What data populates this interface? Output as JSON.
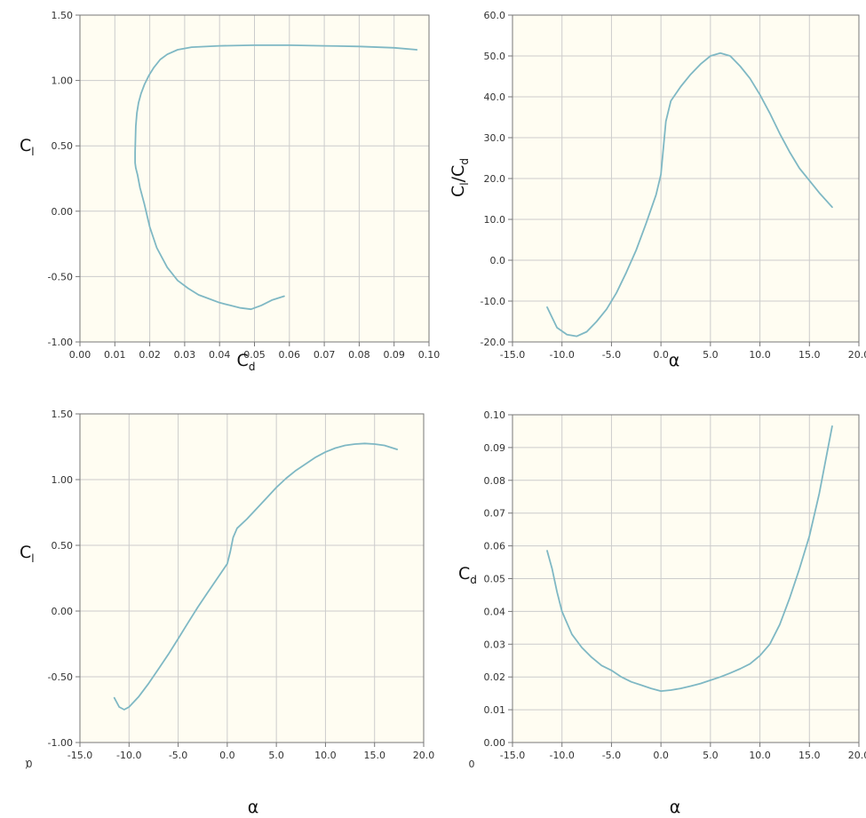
{
  "colors": {
    "plot_background": "#fffdf2",
    "grid": "#cccccc",
    "axis": "#777777",
    "series_line": "#7fb8c4"
  },
  "chart_data": [
    {
      "type": "line",
      "x_axis": {
        "range": [
          0.0,
          0.1
        ],
        "ticks": [
          "0.00",
          "0.01",
          "0.02",
          "0.03",
          "0.04",
          "0.05",
          "0.06",
          "0.07",
          "0.08",
          "0.09",
          "0.10"
        ]
      },
      "y_axis": {
        "range": [
          -1.0,
          1.5
        ],
        "ticks": [
          "-1.00",
          "-0.50",
          "0.00",
          "0.50",
          "1.00",
          "1.50"
        ]
      },
      "xlabel": {
        "main": "C",
        "sub": "d"
      },
      "ylabel": {
        "main": "C",
        "sub": "l"
      },
      "grid": true,
      "series": [
        {
          "x": [
            0.0585,
            0.055,
            0.052,
            0.049,
            0.046,
            0.043,
            0.04,
            0.037,
            0.034,
            0.031,
            0.028,
            0.025,
            0.022,
            0.02,
            0.0185,
            0.0172,
            0.0165,
            0.016,
            0.0158,
            0.0158,
            0.0159,
            0.016,
            0.0163,
            0.0168,
            0.0175,
            0.0185,
            0.0198,
            0.0212,
            0.023,
            0.025,
            0.028,
            0.032,
            0.04,
            0.05,
            0.06,
            0.07,
            0.08,
            0.09,
            0.0965
          ],
          "y": [
            -0.65,
            -0.68,
            -0.72,
            -0.75,
            -0.74,
            -0.72,
            -0.7,
            -0.67,
            -0.64,
            -0.59,
            -0.53,
            -0.43,
            -0.28,
            -0.12,
            0.05,
            0.18,
            0.28,
            0.33,
            0.37,
            0.45,
            0.55,
            0.65,
            0.75,
            0.83,
            0.9,
            0.97,
            1.04,
            1.1,
            1.16,
            1.2,
            1.235,
            1.255,
            1.265,
            1.27,
            1.27,
            1.265,
            1.26,
            1.25,
            1.235
          ]
        }
      ]
    },
    {
      "type": "line",
      "x_axis": {
        "range": [
          -15.0,
          20.0
        ],
        "ticks": [
          "-15.0",
          "-10.0",
          "-5.0",
          "0.0",
          "5.0",
          "10.0",
          "15.0",
          "20.0"
        ]
      },
      "y_axis": {
        "range": [
          -20.0,
          60.0
        ],
        "ticks": [
          "-20.0",
          "-10.0",
          "0.0",
          "10.0",
          "20.0",
          "30.0",
          "40.0",
          "50.0",
          "60.0"
        ]
      },
      "xlabel": {
        "main": "α",
        "sub": ""
      },
      "ylabel": {
        "main": "C",
        "sub": "l",
        "tail": "/C",
        "tail_sub": "d"
      },
      "grid": true,
      "series": [
        {
          "x": [
            -11.5,
            -10.5,
            -9.5,
            -8.5,
            -7.5,
            -6.5,
            -5.5,
            -4.5,
            -3.5,
            -2.5,
            -1.5,
            -0.5,
            0.0,
            0.5,
            1.0,
            2.0,
            3.0,
            4.0,
            5.0,
            6.0,
            7.0,
            8.0,
            9.0,
            10.0,
            11.0,
            12.0,
            13.0,
            14.0,
            15.0,
            16.0,
            17.3
          ],
          "y": [
            -11.5,
            -16.5,
            -18.2,
            -18.6,
            -17.5,
            -15.0,
            -12.0,
            -8.0,
            -3.0,
            2.5,
            9.0,
            16.0,
            21.0,
            34.0,
            39.0,
            42.5,
            45.5,
            48.0,
            50.0,
            50.7,
            50.0,
            47.5,
            44.5,
            40.5,
            36.0,
            31.0,
            26.5,
            22.5,
            19.5,
            16.5,
            13.0
          ]
        }
      ]
    },
    {
      "type": "line",
      "x_axis": {
        "range": [
          -15.0,
          20.0
        ],
        "ticks": [
          "-15.0",
          "-10.0",
          "-5.0",
          "0.0",
          "5.0",
          "10.0",
          "15.0",
          "20.0"
        ]
      },
      "y_axis": {
        "range": [
          -1.0,
          1.5
        ],
        "ticks": [
          "-1.00",
          "-0.50",
          "0.00",
          "0.50",
          "1.00",
          "1.50"
        ]
      },
      "xlabel": {
        "main": "α",
        "sub": ""
      },
      "ylabel": {
        "main": "C",
        "sub": "l"
      },
      "grid": true,
      "series": [
        {
          "x": [
            -11.5,
            -11.0,
            -10.5,
            -10.0,
            -9.0,
            -8.0,
            -7.0,
            -6.0,
            -5.0,
            -4.0,
            -3.0,
            -2.0,
            -1.0,
            0.0,
            0.3,
            0.6,
            1.0,
            2.0,
            3.0,
            4.0,
            5.0,
            6.0,
            7.0,
            8.0,
            9.0,
            10.0,
            11.0,
            12.0,
            13.0,
            14.0,
            15.0,
            16.0,
            17.3
          ],
          "y": [
            -0.66,
            -0.73,
            -0.75,
            -0.73,
            -0.65,
            -0.55,
            -0.44,
            -0.33,
            -0.21,
            -0.09,
            0.03,
            0.14,
            0.25,
            0.36,
            0.45,
            0.56,
            0.63,
            0.7,
            0.78,
            0.86,
            0.94,
            1.01,
            1.07,
            1.12,
            1.17,
            1.21,
            1.24,
            1.26,
            1.27,
            1.275,
            1.27,
            1.26,
            1.23
          ]
        }
      ]
    },
    {
      "type": "line",
      "x_axis": {
        "range": [
          -15.0,
          20.0
        ],
        "ticks": [
          "-15.0",
          "-10.0",
          "-5.0",
          "0.0",
          "5.0",
          "10.0",
          "15.0",
          "20.0"
        ]
      },
      "y_axis": {
        "range": [
          0.0,
          0.1
        ],
        "ticks": [
          "0.00",
          "0.01",
          "0.02",
          "0.03",
          "0.04",
          "0.05",
          "0.06",
          "0.07",
          "0.08",
          "0.09",
          "0.10"
        ]
      },
      "xlabel": {
        "main": "α",
        "sub": ""
      },
      "ylabel": {
        "main": "C",
        "sub": "d"
      },
      "grid": true,
      "series": [
        {
          "x": [
            -11.5,
            -11.0,
            -10.5,
            -10.0,
            -9.0,
            -8.0,
            -7.0,
            -6.0,
            -5.0,
            -4.0,
            -3.0,
            -2.0,
            -1.0,
            0.0,
            1.0,
            2.0,
            3.0,
            4.0,
            5.0,
            6.0,
            7.0,
            8.0,
            9.0,
            10.0,
            11.0,
            12.0,
            13.0,
            14.0,
            15.0,
            16.0,
            17.3
          ],
          "y": [
            0.0585,
            0.053,
            0.046,
            0.04,
            0.033,
            0.029,
            0.026,
            0.0235,
            0.022,
            0.02,
            0.0185,
            0.0175,
            0.0165,
            0.0157,
            0.016,
            0.0165,
            0.0172,
            0.018,
            0.019,
            0.02,
            0.0212,
            0.0225,
            0.024,
            0.0265,
            0.03,
            0.036,
            0.044,
            0.053,
            0.063,
            0.076,
            0.0965
          ]
        }
      ]
    }
  ],
  "edge_fragments": [
    "0",
    ")",
    "0"
  ]
}
